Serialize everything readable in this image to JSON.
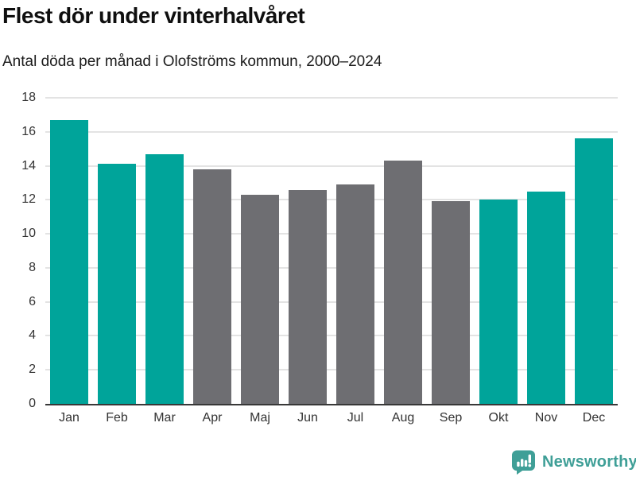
{
  "header": {
    "title": "Flest dör under vinterhalvåret",
    "subtitle": "Antal döda per månad i Olofströms kommun, 2000–2024"
  },
  "chart_data": {
    "type": "bar",
    "title": "Flest dör under vinterhalvåret",
    "subtitle": "Antal döda per månad i Olofströms kommun, 2000–2024",
    "categories": [
      "Jan",
      "Feb",
      "Mar",
      "Apr",
      "Maj",
      "Jun",
      "Jul",
      "Aug",
      "Sep",
      "Okt",
      "Nov",
      "Dec"
    ],
    "values": [
      16.7,
      14.1,
      14.7,
      13.8,
      12.3,
      12.6,
      12.9,
      14.3,
      11.9,
      12.0,
      12.5,
      15.6
    ],
    "bar_roles": [
      "highlight",
      "highlight",
      "highlight",
      "muted",
      "muted",
      "muted",
      "muted",
      "muted",
      "muted",
      "highlight",
      "highlight",
      "highlight"
    ],
    "xlabel": "",
    "ylabel": "",
    "ylim": [
      0,
      18
    ],
    "yticks": [
      0,
      2,
      4,
      6,
      8,
      10,
      12,
      14,
      16,
      18
    ],
    "grid": true,
    "legend": "none",
    "colors": {
      "highlight": "#00a49a",
      "muted": "#6e6e72",
      "gridline": "#e3e3e3",
      "axis_line": "#383838",
      "tick_label": "#333333"
    }
  },
  "footer": {
    "brand": "Newsworthy",
    "brand_color": "#3f9f97",
    "brand_icon": "bar-chart-speech-bubble-icon"
  }
}
